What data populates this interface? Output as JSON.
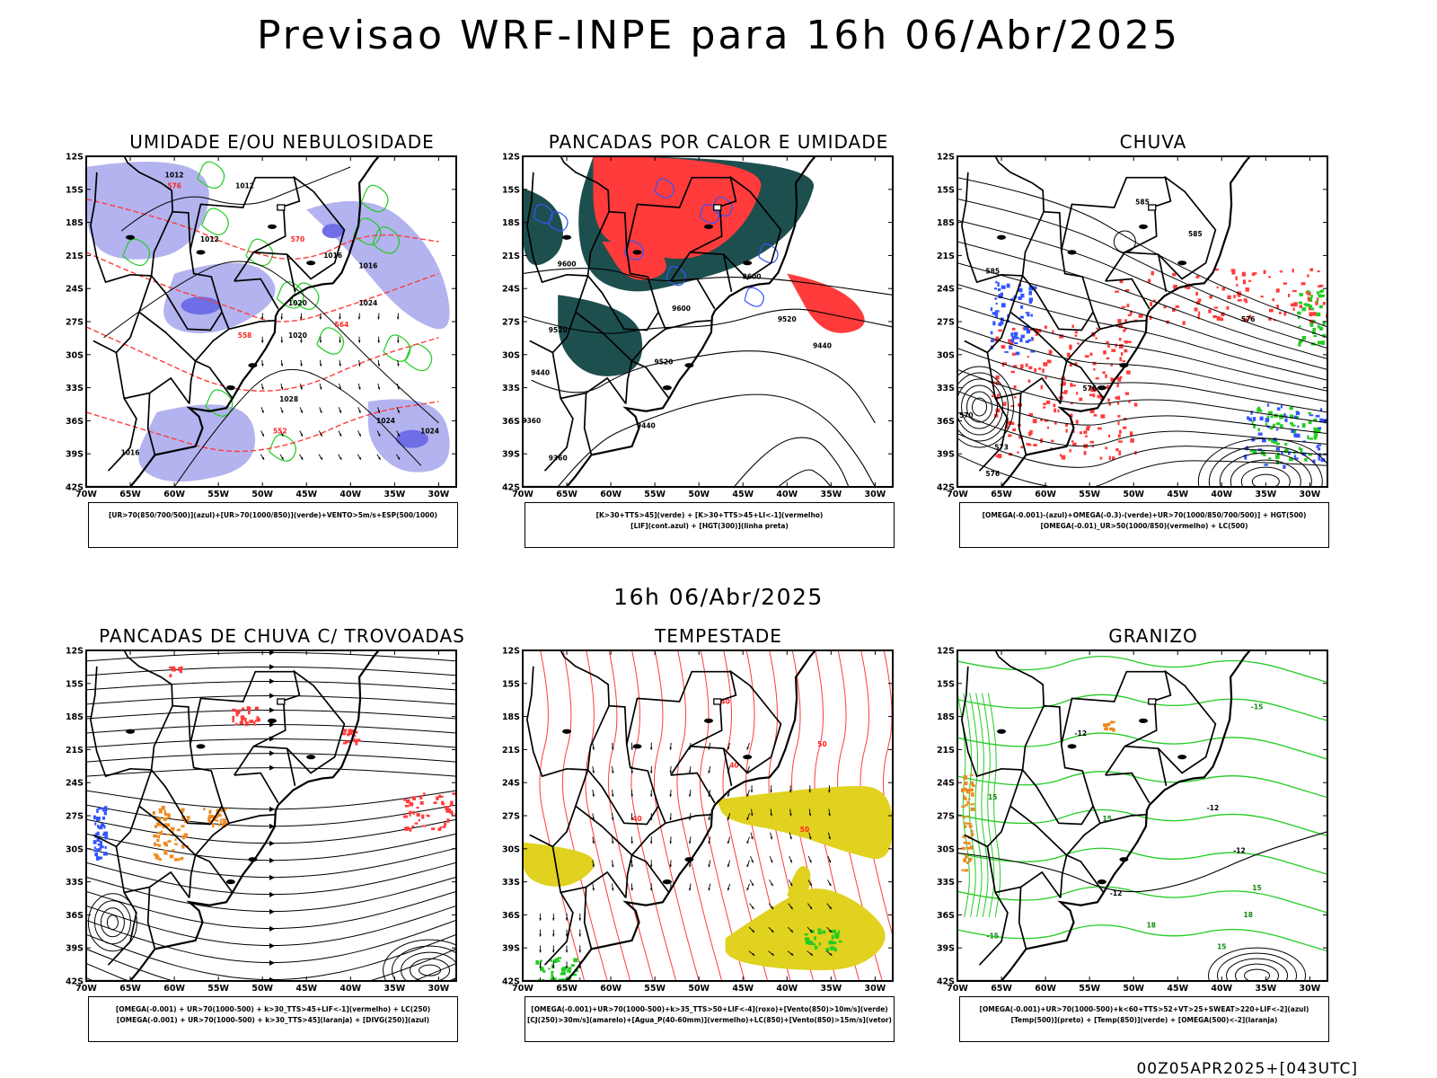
{
  "header": {
    "title": "Previsao WRF-INPE  para 16h 06/Abr/2025",
    "mid_date": "16h 06/Abr/2025",
    "stamp": "00Z05APR2025+[043UTC]"
  },
  "axes": {
    "lat_labels": [
      "12S",
      "15S",
      "18S",
      "21S",
      "24S",
      "27S",
      "30S",
      "33S",
      "36S",
      "39S",
      "42S"
    ],
    "lon_labels": [
      "70W",
      "65W",
      "60W",
      "55W",
      "50W",
      "45W",
      "40W",
      "35W",
      "30W"
    ]
  },
  "colors": {
    "blue_light": "#b3b3ef",
    "blue_mid": "#6e6ee6",
    "green": "#22cc22",
    "red": "#ff3b3b",
    "dark_teal": "#1e4f4f",
    "blue_line": "#3355ff",
    "yellow": "#e0d21e",
    "orange": "#ee8a22",
    "isobar_label_red": "#ff2222"
  },
  "panels": [
    {
      "id": "umidade",
      "title": "UMIDADE E/OU NEBULOSIDADE",
      "legend": [
        "[UR>70(850/700/500)](azul)+[UR>70(1000/850)](verde)+VENTO>5m/s+ESP(500/1000)"
      ],
      "labels": [
        "1012",
        "1012",
        "1012",
        "1016",
        "1016",
        "1020",
        "1020",
        "1024",
        "1028",
        "1024",
        "1024",
        "1016",
        "576",
        "570",
        "564",
        "558",
        "552"
      ]
    },
    {
      "id": "pancadas_calor",
      "title": "PANCADAS POR CALOR E UMIDADE",
      "legend": [
        "[K>30+TTS>45](verde) + [K>30+TTS>45+LI<-1](vermelho)",
        "[LIF](cont.azul) + [HGT(300)](linha preta)"
      ],
      "labels": [
        "9600",
        "9520",
        "9440",
        "9600",
        "9520",
        "9440",
        "9600",
        "9520",
        "9440",
        "9360",
        "9360"
      ]
    },
    {
      "id": "chuva",
      "title": "CHUVA",
      "legend": [
        "[OMEGA(-0.001)-(azul)+OMEGA(-0.3)-(verde)+UR>70(1000/850/700/500)] + HGT(500)",
        "[OMEGA(-0.01)_UR>50(1000/850)(vermelho) + LC(500)"
      ],
      "labels": [
        "585",
        "585",
        "585",
        "576",
        "576",
        "570",
        "573",
        "576"
      ]
    },
    {
      "id": "trovoadas",
      "title": "PANCADAS DE CHUVA C/ TROVOADAS",
      "legend": [
        "[OMEGA(-0.001) + UR>70(1000-500) + k>30_TTS>45+LIF<-1](vermelho) + LC(250)",
        "[OMEGA(-0.001) + UR>70(1000-500) + k>30_TTS>45](laranja) + [DIVG(250)](azul)"
      ],
      "labels": []
    },
    {
      "id": "tempestade",
      "title": "TEMPESTADE",
      "legend": [
        "[OMEGA(-0.001)+UR>70(1000-500)+k>35_TTS>50+LIF<-4](roxo)+[Vento(850)>10m/s](verde)",
        "[CJ(250)>30m/s](amarelo)+[Agua_P(40-60mm)](vermelho)+LC(850)+[Vento(850)>15m/s](vetor)"
      ],
      "labels": [
        "40",
        "40",
        "50",
        "50",
        "40"
      ]
    },
    {
      "id": "granizo",
      "title": "GRANIZO",
      "legend": [
        "[OMEGA(-0.001)+UR>70(1000-500)+k<60+TTS>52+VT>25+SWEAT>220+LIF<-2](azul)",
        "[Temp(500)](preto) + [Temp(850)](verde) + [OMEGA(500)<-2](laranja)"
      ],
      "labels": [
        "-12",
        "-12",
        "-12",
        "-12",
        "15",
        "15",
        "15",
        "15",
        "18",
        "18",
        "-15",
        "-15"
      ]
    }
  ]
}
